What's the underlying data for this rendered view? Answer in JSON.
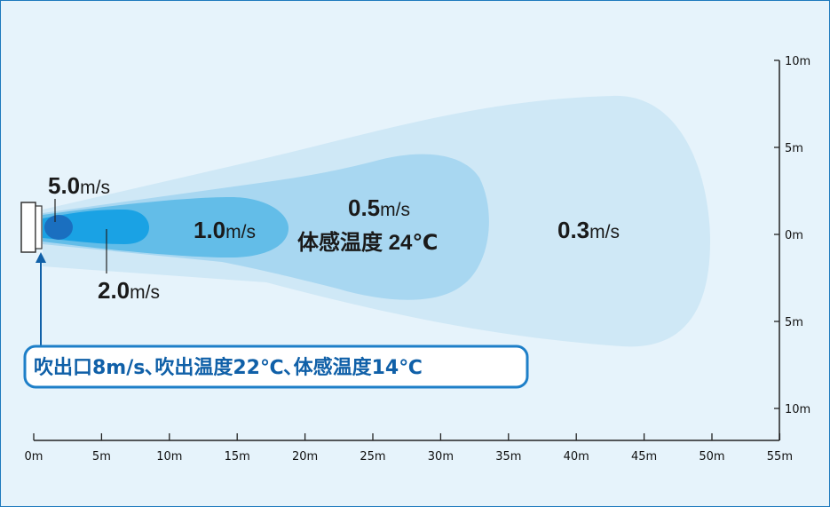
{
  "zones": [
    {
      "value": "5.0",
      "unit": "m/s"
    },
    {
      "value": "2.0",
      "unit": "m/s"
    },
    {
      "value": "1.0",
      "unit": "m/s"
    },
    {
      "value": "0.5",
      "unit": "m/s",
      "sub": "体感温度 24℃"
    },
    {
      "value": "0.3",
      "unit": "m/s"
    }
  ],
  "callout": "吹出口8m/s､吹出温度22℃､体感温度14℃",
  "x_ticks": [
    "0m",
    "5m",
    "10m",
    "15m",
    "20m",
    "25m",
    "30m",
    "35m",
    "40m",
    "45m",
    "50m",
    "55m"
  ],
  "y_ticks": [
    "10m",
    "5m",
    "0m",
    "5m",
    "10m"
  ],
  "colors": {
    "border": "#1d79bd",
    "zone_03": "#cfe8f6",
    "zone_05": "#a8d7f1",
    "zone_10": "#63bde8",
    "zone_20": "#1aa2e4",
    "zone_50": "#1a6fc0"
  }
}
